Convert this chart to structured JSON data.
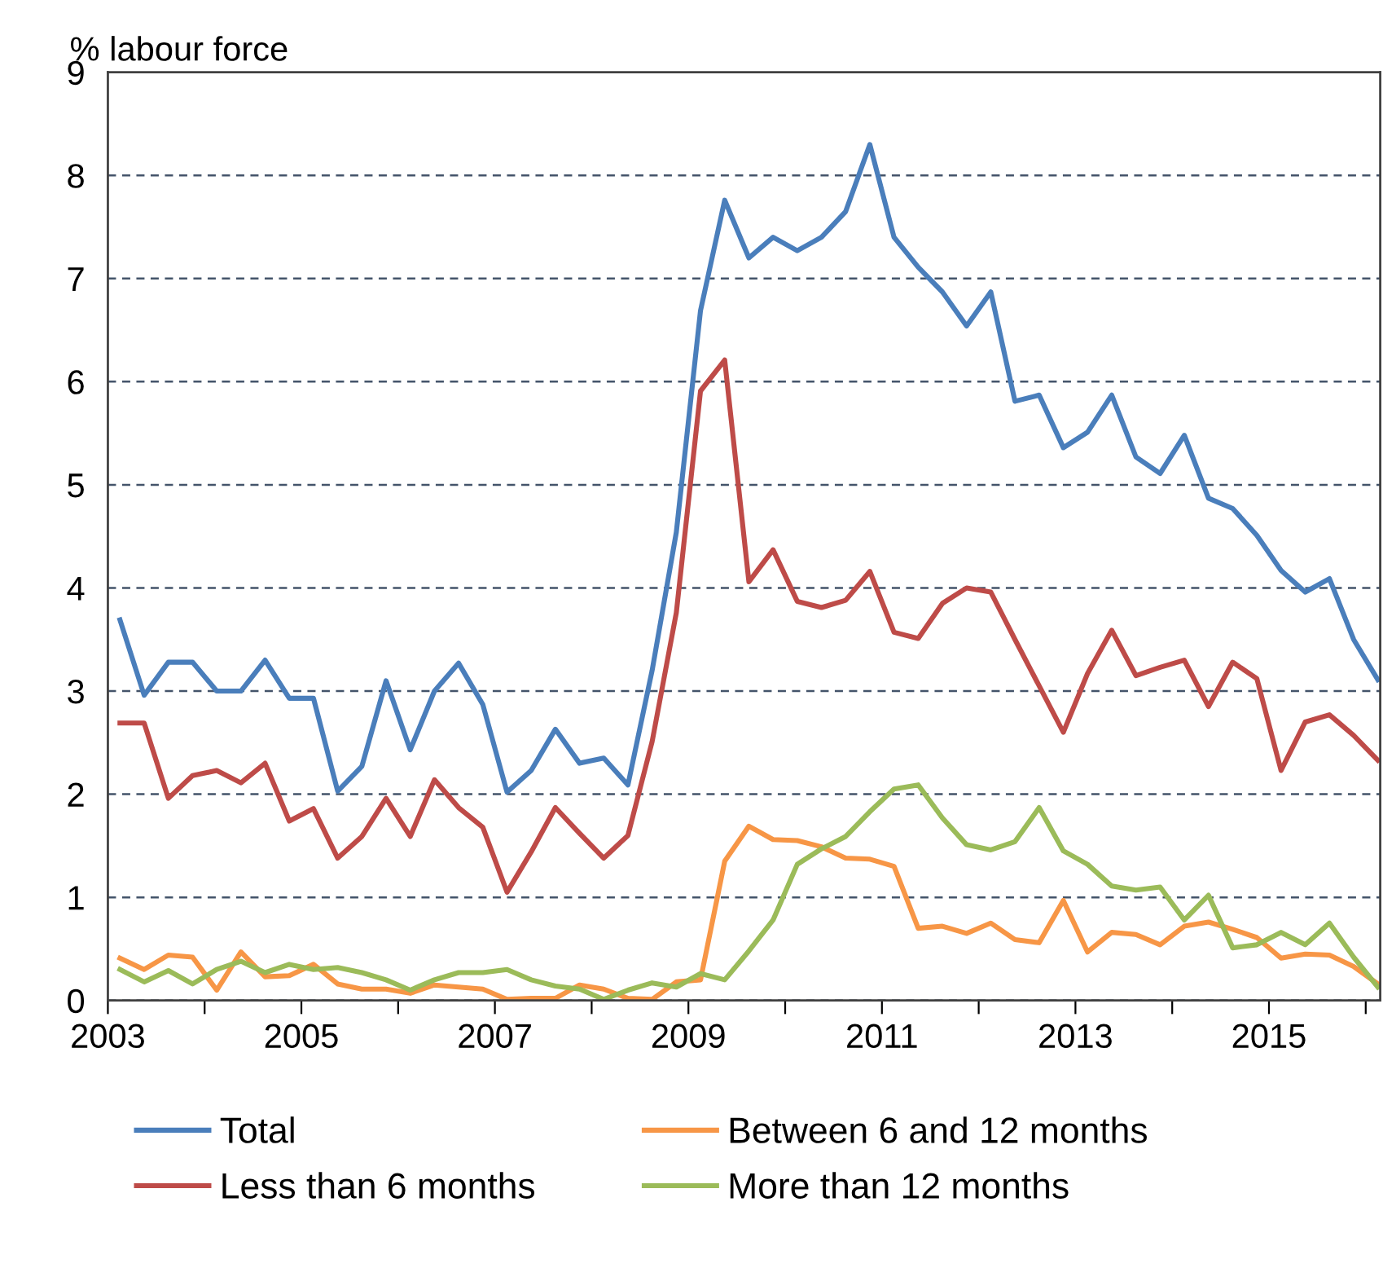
{
  "chart_data": {
    "type": "line",
    "ylabel": "% labour force",
    "x": [
      2003.125,
      2003.375,
      2003.625,
      2003.875,
      2004.125,
      2004.375,
      2004.625,
      2004.875,
      2005.125,
      2005.375,
      2005.625,
      2005.875,
      2006.125,
      2006.375,
      2006.625,
      2006.875,
      2007.125,
      2007.375,
      2007.625,
      2007.875,
      2008.125,
      2008.375,
      2008.625,
      2008.875,
      2009.125,
      2009.375,
      2009.625,
      2009.875,
      2010.125,
      2010.375,
      2010.625,
      2010.875,
      2011.125,
      2011.375,
      2011.625,
      2011.875,
      2012.125,
      2012.375,
      2012.625,
      2012.875,
      2013.125,
      2013.375,
      2013.625,
      2013.875,
      2014.125,
      2014.375,
      2014.625,
      2014.875,
      2015.125,
      2015.375,
      2015.625,
      2015.875,
      2016.125
    ],
    "series": [
      {
        "name": "Total",
        "color": "#4a7ebb",
        "values": [
          3.69,
          2.96,
          3.28,
          3.28,
          3.0,
          3.0,
          3.3,
          2.93,
          2.93,
          2.03,
          2.27,
          3.1,
          2.43,
          3.0,
          3.27,
          2.87,
          2.02,
          2.23,
          2.63,
          2.3,
          2.35,
          2.09,
          3.2,
          4.54,
          6.69,
          7.76,
          7.2,
          7.4,
          7.27,
          7.4,
          7.65,
          8.3,
          7.4,
          7.11,
          6.87,
          6.54,
          6.87,
          5.81,
          5.87,
          5.36,
          5.51,
          5.87,
          5.27,
          5.11,
          5.48,
          4.87,
          4.77,
          4.51,
          4.17,
          3.96,
          4.09,
          3.5,
          3.11
        ]
      },
      {
        "name": "Less than 6 months",
        "color": "#be4b48",
        "values": [
          2.69,
          2.69,
          1.96,
          2.18,
          2.23,
          2.11,
          2.3,
          1.74,
          1.86,
          1.38,
          1.59,
          1.96,
          1.59,
          2.14,
          1.87,
          1.68,
          1.05,
          1.44,
          1.87,
          1.62,
          1.38,
          1.6,
          2.51,
          3.76,
          5.91,
          6.21,
          4.06,
          4.37,
          3.87,
          3.81,
          3.88,
          4.16,
          3.57,
          3.51,
          3.85,
          4.0,
          3.96,
          3.5,
          3.05,
          2.6,
          3.17,
          3.59,
          3.15,
          3.23,
          3.3,
          2.85,
          3.28,
          3.12,
          2.23,
          2.7,
          2.77,
          2.57,
          2.33
        ]
      },
      {
        "name": "Between 6 and 12 months",
        "color": "#f79646",
        "values": [
          0.41,
          0.3,
          0.44,
          0.42,
          0.1,
          0.47,
          0.23,
          0.24,
          0.35,
          0.16,
          0.11,
          0.11,
          0.07,
          0.15,
          0.13,
          0.11,
          0.01,
          0.02,
          0.02,
          0.15,
          0.11,
          0.02,
          0.01,
          0.18,
          0.2,
          1.35,
          1.69,
          1.56,
          1.55,
          1.49,
          1.38,
          1.37,
          1.3,
          0.7,
          0.72,
          0.65,
          0.75,
          0.59,
          0.56,
          0.97,
          0.47,
          0.66,
          0.64,
          0.54,
          0.72,
          0.76,
          0.69,
          0.61,
          0.41,
          0.45,
          0.44,
          0.33,
          0.16
        ]
      },
      {
        "name": "More than 12 months",
        "color": "#9bbb59",
        "values": [
          0.3,
          0.18,
          0.29,
          0.16,
          0.3,
          0.38,
          0.27,
          0.35,
          0.3,
          0.32,
          0.27,
          0.2,
          0.1,
          0.2,
          0.27,
          0.27,
          0.3,
          0.2,
          0.14,
          0.11,
          0.01,
          0.1,
          0.17,
          0.13,
          0.26,
          0.2,
          0.48,
          0.78,
          1.32,
          1.47,
          1.59,
          1.83,
          2.05,
          2.09,
          1.77,
          1.51,
          1.46,
          1.54,
          1.87,
          1.45,
          1.32,
          1.11,
          1.07,
          1.1,
          0.78,
          1.02,
          0.51,
          0.54,
          0.66,
          0.54,
          0.75,
          0.42,
          0.13
        ]
      }
    ],
    "xlim": [
      2003,
      2016.15
    ],
    "xticks": [
      2003,
      {
        "value": 2004,
        "label": null
      },
      2005,
      {
        "value": 2006,
        "label": null
      },
      2007,
      {
        "value": 2008,
        "label": null
      },
      2009,
      {
        "value": 2010,
        "label": null
      },
      2011,
      {
        "value": 2012,
        "label": null
      },
      2013,
      {
        "value": 2014,
        "label": null
      },
      2015,
      {
        "value": 2016,
        "label": null
      }
    ],
    "ylim": [
      0,
      9
    ],
    "yticks": [
      0,
      1,
      2,
      3,
      4,
      5,
      6,
      7,
      8,
      9
    ],
    "grid": "y",
    "legend": "bottom",
    "marker": "none",
    "line_style": "solid"
  }
}
